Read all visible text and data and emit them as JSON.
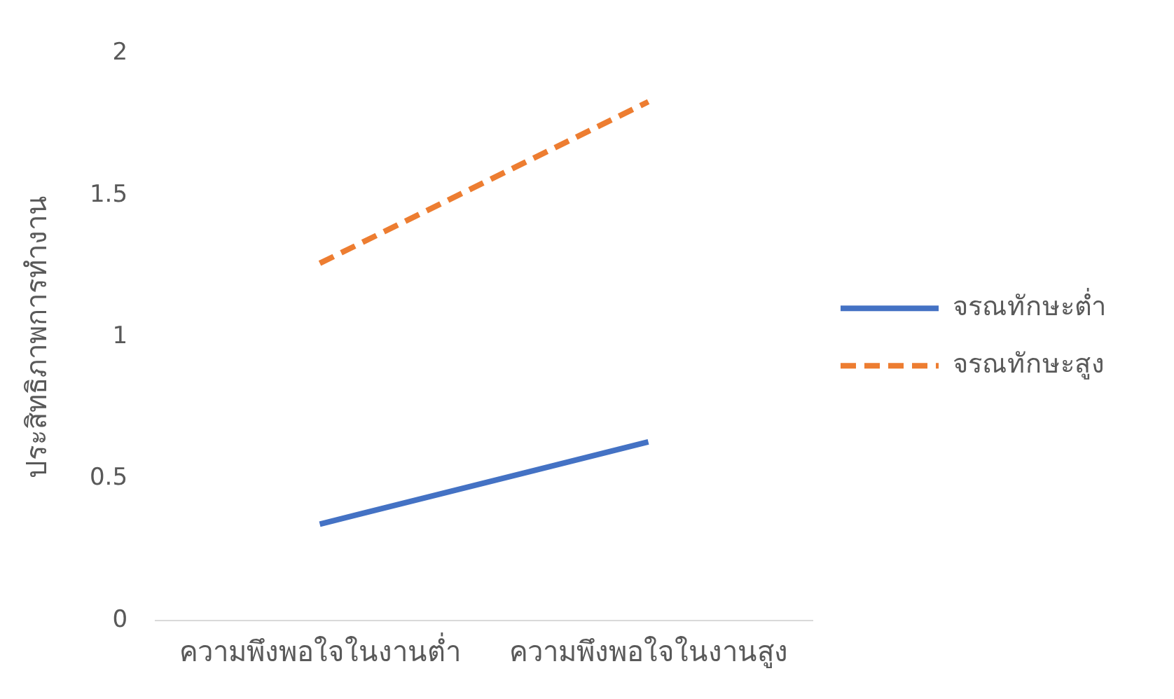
{
  "chart_data": {
    "type": "line",
    "ylabel": "ประสิทธิภาพการทำงาน",
    "categories": [
      "ความพึงพอใจในงานต่ำ",
      "ความพึงพอใจในงานสูง"
    ],
    "series": [
      {
        "name": "จรณทักษะต่ำ",
        "color": "#4472c4",
        "values": [
          0.34,
          0.63
        ],
        "line_style": "solid"
      },
      {
        "name": "จรณทักษะสูง",
        "color": "#ed7d31",
        "values": [
          1.26,
          1.83
        ],
        "line_style": "dashed"
      }
    ],
    "ylim": [
      0,
      2
    ],
    "yticks": [
      0,
      0.5,
      1,
      1.5,
      2
    ],
    "grid": false,
    "legend": "right",
    "marker": "none"
  }
}
